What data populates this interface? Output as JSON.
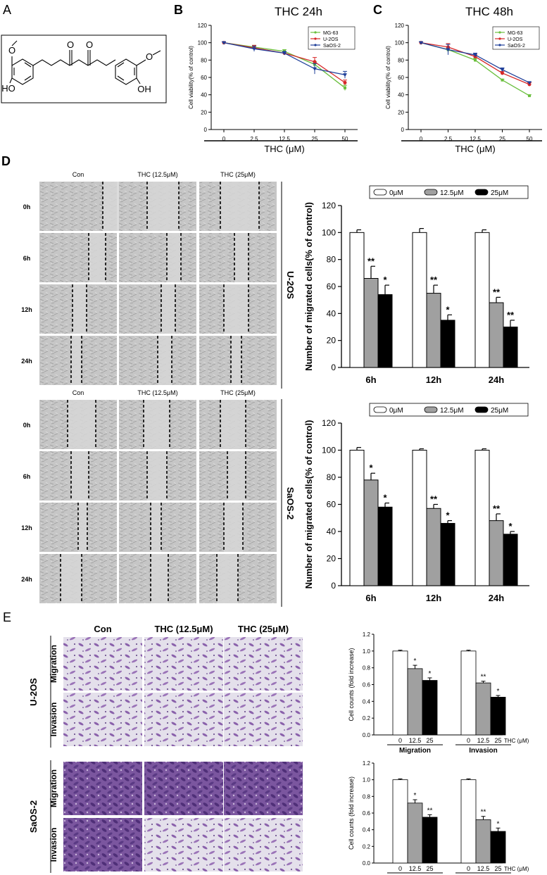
{
  "panels": {
    "A": "A",
    "B": "B",
    "C": "C",
    "D": "D",
    "E": "E"
  },
  "chart_data": [
    {
      "id": "B",
      "type": "line",
      "title": "THC 24h",
      "xlabel": "THC (μM)",
      "ylabel": "Cell viability(% of control)",
      "categories": [
        "0",
        "2.5",
        "12.5",
        "25",
        "50"
      ],
      "yticks": [
        "0",
        "20",
        "40",
        "60",
        "80",
        "100",
        "120"
      ],
      "ylim": [
        0,
        120
      ],
      "legend_position": "top-right",
      "series": [
        {
          "name": "MG-63",
          "color": "#6abf3d",
          "marker": "square",
          "values": [
            100,
            95,
            90,
            75,
            48
          ],
          "errors": [
            1,
            2,
            2,
            3,
            3
          ]
        },
        {
          "name": "U-2OS",
          "color": "#d62728",
          "marker": "circle",
          "values": [
            100,
            94,
            88,
            78,
            54
          ],
          "errors": [
            1,
            3,
            2,
            5,
            3
          ]
        },
        {
          "name": "SaOS-2",
          "color": "#1f3f99",
          "marker": "triangle-down",
          "values": [
            100,
            93,
            88,
            70,
            63
          ],
          "errors": [
            1,
            3,
            2,
            6,
            4
          ]
        }
      ]
    },
    {
      "id": "C",
      "type": "line",
      "title": "THC 48h",
      "xlabel": "THC (μM)",
      "ylabel": "Cell viability(% of control)",
      "categories": [
        "0",
        "2.5",
        "12.5",
        "25",
        "50"
      ],
      "yticks": [
        "0",
        "20",
        "40",
        "60",
        "80",
        "100",
        "120"
      ],
      "ylim": [
        0,
        120
      ],
      "legend_position": "top-right",
      "series": [
        {
          "name": "MG-63",
          "color": "#6abf3d",
          "marker": "square",
          "values": [
            100,
            92,
            80,
            57,
            39
          ],
          "errors": [
            1,
            2,
            2,
            1,
            1
          ]
        },
        {
          "name": "U-2OS",
          "color": "#d62728",
          "marker": "circle",
          "values": [
            100,
            95,
            84,
            65,
            52
          ],
          "errors": [
            1,
            4,
            2,
            2,
            2
          ]
        },
        {
          "name": "SaOS-2",
          "color": "#1f3f99",
          "marker": "triangle-down",
          "values": [
            100,
            92,
            86,
            69,
            54
          ],
          "errors": [
            1,
            6,
            2,
            2,
            1
          ]
        }
      ]
    },
    {
      "id": "D-U2OS",
      "type": "bar",
      "ylabel": "Number of migrated cells(% of control)",
      "categories": [
        "6h",
        "12h",
        "24h"
      ],
      "yticks": [
        "0",
        "20",
        "40",
        "60",
        "80",
        "100",
        "120"
      ],
      "ylim": [
        0,
        120
      ],
      "legend_position": "top",
      "series": [
        {
          "name": "0μM",
          "color": "#ffffff",
          "values": [
            100,
            100,
            100
          ],
          "errors": [
            2,
            3,
            2
          ],
          "sig": [
            "",
            "",
            ""
          ]
        },
        {
          "name": "12.5μM",
          "color": "#a0a0a0",
          "values": [
            66,
            55,
            48
          ],
          "errors": [
            9,
            6,
            4
          ],
          "sig": [
            "**",
            "**",
            "**"
          ]
        },
        {
          "name": "25μM",
          "color": "#000000",
          "values": [
            54,
            35,
            30
          ],
          "errors": [
            7,
            4,
            5
          ],
          "sig": [
            "*",
            "*",
            "**"
          ]
        }
      ]
    },
    {
      "id": "D-SaOS2",
      "type": "bar",
      "ylabel": "Number of migrated cells(% of control)",
      "categories": [
        "6h",
        "12h",
        "24h"
      ],
      "yticks": [
        "0",
        "20",
        "40",
        "60",
        "80",
        "100",
        "120"
      ],
      "ylim": [
        0,
        120
      ],
      "legend_position": "top",
      "series": [
        {
          "name": "0μM",
          "color": "#ffffff",
          "values": [
            100,
            100,
            100
          ],
          "errors": [
            2,
            1,
            1
          ],
          "sig": [
            "",
            "",
            ""
          ]
        },
        {
          "name": "12.5μM",
          "color": "#a0a0a0",
          "values": [
            78,
            57,
            48
          ],
          "errors": [
            5,
            3,
            5
          ],
          "sig": [
            "*",
            "**",
            "**"
          ]
        },
        {
          "name": "25μM",
          "color": "#000000",
          "values": [
            58,
            46,
            38
          ],
          "errors": [
            3,
            2,
            2
          ],
          "sig": [
            "*",
            "*",
            "*"
          ]
        }
      ]
    },
    {
      "id": "E-U2OS",
      "type": "bar",
      "ylabel": "Cell counts (fold increase)",
      "xunit": "THC (μM)",
      "groups": [
        "Migration",
        "Invasion"
      ],
      "categories": [
        "0",
        "12.5",
        "25"
      ],
      "yticks": [
        "0.0",
        "0.2",
        "0.4",
        "0.6",
        "0.8",
        "1.0",
        "1.2"
      ],
      "ylim": [
        0,
        1.2
      ],
      "colors": [
        "#ffffff",
        "#a0a0a0",
        "#000000"
      ],
      "values": [
        [
          1.0,
          0.79,
          0.65
        ],
        [
          1.0,
          0.62,
          0.45
        ]
      ],
      "errors": [
        [
          0.01,
          0.04,
          0.03
        ],
        [
          0.01,
          0.02,
          0.02
        ]
      ],
      "sig": [
        [
          "",
          "*",
          "*"
        ],
        [
          "",
          "**",
          "*"
        ]
      ]
    },
    {
      "id": "E-SaOS2",
      "type": "bar",
      "ylabel": "Cell counts (fold increase)",
      "xunit": "THC (μM)",
      "groups": [
        "Migration",
        "Invasion"
      ],
      "categories": [
        "0",
        "12.5",
        "25"
      ],
      "yticks": [
        "0.0",
        "0.2",
        "0.4",
        "0.6",
        "0.8",
        "1.0",
        "1.2"
      ],
      "ylim": [
        0,
        1.2
      ],
      "colors": [
        "#ffffff",
        "#a0a0a0",
        "#000000"
      ],
      "values": [
        [
          1.0,
          0.72,
          0.55
        ],
        [
          1.0,
          0.52,
          0.38
        ]
      ],
      "errors": [
        [
          0.01,
          0.04,
          0.03
        ],
        [
          0.01,
          0.04,
          0.04
        ]
      ],
      "sig": [
        [
          "",
          "*",
          "**"
        ],
        [
          "",
          "**",
          "*"
        ]
      ]
    }
  ],
  "structure": {
    "atoms": [
      "O",
      "O",
      "O",
      "O",
      "HO",
      "OH"
    ]
  },
  "scratch_assay": {
    "columns": [
      "Con",
      "THC (12.5μM)",
      "THC (25μM)"
    ],
    "rows": [
      "0h",
      "6h",
      "12h",
      "24h"
    ],
    "cell_lines": [
      "U-2OS",
      "SaOS-2"
    ]
  },
  "transwell": {
    "columns": [
      "Con",
      "THC (12.5μM)",
      "THC (25μM)"
    ],
    "rows": [
      "Migration",
      "Invasion"
    ],
    "cell_lines": [
      "U-2OS",
      "SaOS-2"
    ]
  }
}
